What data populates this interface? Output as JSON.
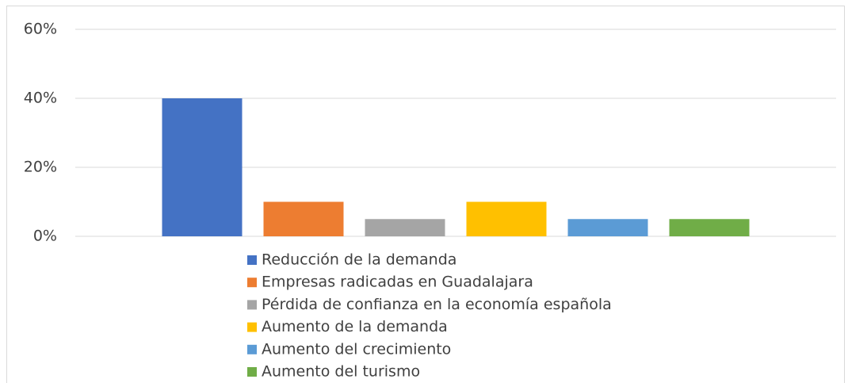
{
  "chart_data": {
    "type": "bar",
    "categories": [
      null
    ],
    "series": [
      {
        "name": "Reducción de la demanda",
        "color": "#4472c4",
        "values": [
          40
        ]
      },
      {
        "name": "Empresas radicadas en Guadalajara",
        "color": "#ed7d31",
        "values": [
          10
        ]
      },
      {
        "name": "Pérdida de confianza en la economía española",
        "color": "#a5a5a5",
        "values": [
          5
        ]
      },
      {
        "name": "Aumento de la demanda",
        "color": "#ffc000",
        "values": [
          10
        ]
      },
      {
        "name": "Aumento del crecimiento",
        "color": "#5b9bd5",
        "values": [
          5
        ]
      },
      {
        "name": "Aumento del turismo",
        "color": "#70ad47",
        "values": [
          5
        ]
      }
    ],
    "ylim": [
      0,
      60
    ],
    "yticks": [
      {
        "value": 0,
        "label": "0%"
      },
      {
        "value": 20,
        "label": "20%"
      },
      {
        "value": 40,
        "label": "40%"
      },
      {
        "value": 60,
        "label": "60%"
      }
    ],
    "grid": true,
    "legend": "bottom"
  }
}
